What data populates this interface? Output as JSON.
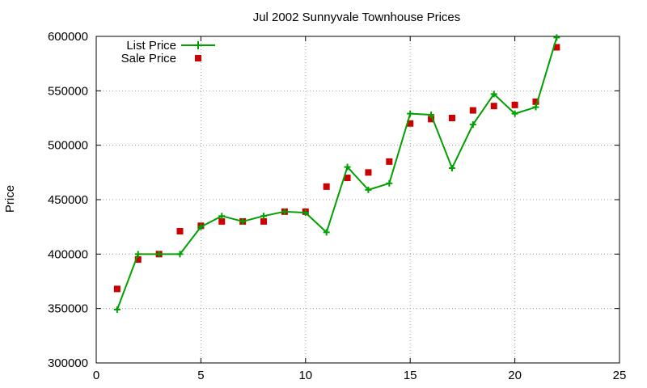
{
  "chart_data": {
    "type": "line",
    "title": "Jul 2002 Sunnyvale Townhouse Prices",
    "xlabel": "",
    "ylabel": "Price",
    "xlim": [
      0,
      25
    ],
    "ylim": [
      300000,
      600000
    ],
    "x_ticks": [
      0,
      5,
      10,
      15,
      20,
      25
    ],
    "y_ticks": [
      300000,
      350000,
      400000,
      450000,
      500000,
      550000,
      600000
    ],
    "grid": true,
    "legend_position": "top-left",
    "series": [
      {
        "name": "List Price",
        "style": "line with plus markers",
        "color": "#00a000",
        "x": [
          1,
          2,
          3,
          4,
          5,
          6,
          7,
          8,
          9,
          10,
          11,
          12,
          13,
          14,
          15,
          16,
          17,
          18,
          19,
          20,
          21,
          22
        ],
        "y": [
          349000,
          400000,
          400000,
          400000,
          425000,
          435000,
          430000,
          435000,
          439000,
          438000,
          420000,
          480000,
          459000,
          465000,
          529000,
          528000,
          479000,
          519000,
          547000,
          529000,
          535000,
          599000
        ]
      },
      {
        "name": "Sale Price",
        "style": "square markers",
        "color": "#cc0000",
        "x": [
          1,
          2,
          3,
          4,
          5,
          6,
          7,
          8,
          9,
          10,
          11,
          12,
          13,
          14,
          15,
          16,
          17,
          18,
          19,
          20,
          21,
          22
        ],
        "y": [
          368000,
          395000,
          400000,
          421000,
          426000,
          430000,
          430000,
          430000,
          439000,
          439000,
          462000,
          470000,
          475000,
          485000,
          520000,
          524000,
          525000,
          532000,
          536000,
          537000,
          540000,
          590000
        ]
      }
    ]
  }
}
